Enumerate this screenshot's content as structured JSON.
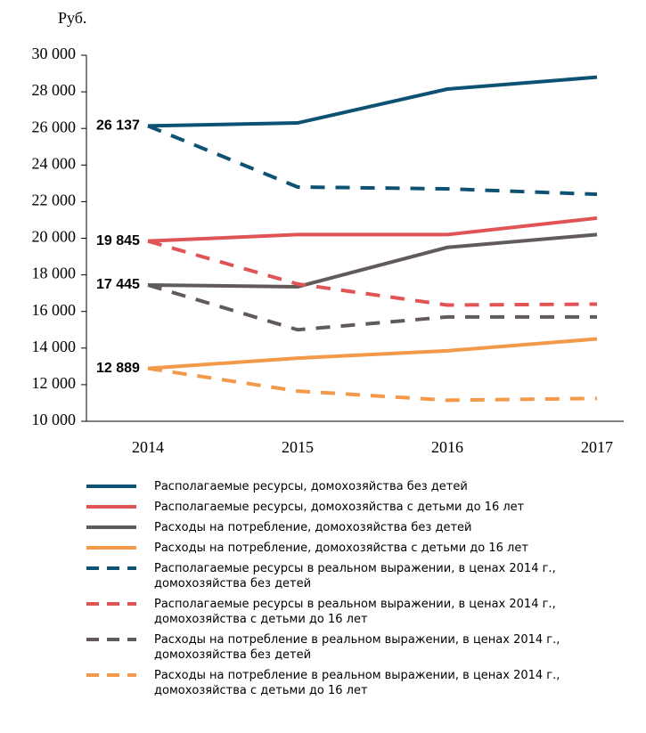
{
  "chart_data": {
    "type": "line",
    "y_label": "Руб.",
    "categories": [
      "2014",
      "2015",
      "2016",
      "2017"
    ],
    "ylim": [
      10000,
      30000
    ],
    "yticks": [
      {
        "value": 10000,
        "label": "10 000"
      },
      {
        "value": 12000,
        "label": "12 000"
      },
      {
        "value": 14000,
        "label": "14 000"
      },
      {
        "value": 16000,
        "label": "16 000"
      },
      {
        "value": 18000,
        "label": "18 000"
      },
      {
        "value": 20000,
        "label": "20 000"
      },
      {
        "value": 22000,
        "label": "22 000"
      },
      {
        "value": 24000,
        "label": "24 000"
      },
      {
        "value": 26000,
        "label": "26 000"
      },
      {
        "value": 28000,
        "label": "28 000"
      },
      {
        "value": 30000,
        "label": "30 000"
      }
    ],
    "series": [
      {
        "name": "Располагаемые ресурсы, домохозяйства без детей",
        "color": "#0d5272",
        "style": "solid",
        "values": [
          26137,
          26300,
          28150,
          28800
        ],
        "value_labels": [
          "26 137",
          null,
          null,
          null
        ]
      },
      {
        "name": "Располагаемые ресурсы, домохозяйства с детьми до 16 лет",
        "color": "#e05456",
        "style": "solid",
        "values": [
          19845,
          20200,
          20200,
          21100
        ],
        "value_labels": [
          "19 845",
          null,
          null,
          null
        ]
      },
      {
        "name": "Расходы на потребление, домохозяйства без детей",
        "color": "#615a5a",
        "style": "solid",
        "values": [
          17445,
          17350,
          19500,
          20200
        ],
        "value_labels": [
          "17 445",
          null,
          null,
          null
        ]
      },
      {
        "name": "Расходы на потребление, домохозяйства с детьми до 16 лет",
        "color": "#f4984a",
        "style": "solid",
        "values": [
          12889,
          13450,
          13850,
          14500
        ],
        "value_labels": [
          "12 889",
          null,
          null,
          null
        ]
      },
      {
        "name": "Располагаемые ресурсы в реальном выражении, в ценах 2014 г., домохозяйства без детей",
        "color": "#0d5272",
        "style": "dashed",
        "values": [
          26137,
          22800,
          22700,
          22400
        ]
      },
      {
        "name": "Располагаемые ресурсы в реальном  выражении, в ценах 2014 г., домохозяйства с детьми до 16 лет",
        "color": "#e05456",
        "style": "dashed",
        "values": [
          19845,
          17500,
          16350,
          16400
        ]
      },
      {
        "name": "Расходы на потребление в реальном выражении, в ценах 2014 г., домохозяйства без детей",
        "color": "#615a5a",
        "style": "dashed",
        "values": [
          17445,
          15000,
          15700,
          15700
        ]
      },
      {
        "name": "Расходы на потребление  в реальном выражении, в ценах 2014 г., домохозяйства с детьми до 16 лет",
        "color": "#f4984a",
        "style": "dashed",
        "values": [
          12889,
          11650,
          11150,
          11250
        ]
      }
    ]
  }
}
